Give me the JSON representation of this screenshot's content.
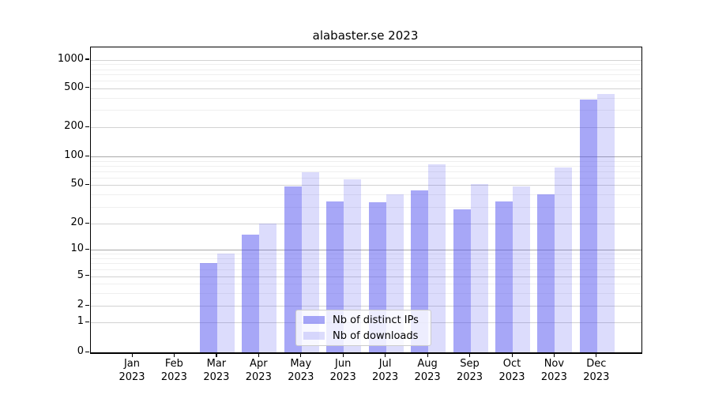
{
  "title": "alabaster.se 2023",
  "chart_data": {
    "type": "bar",
    "title": "alabaster.se 2023",
    "x_categories": [
      "Jan",
      "Feb",
      "Mar",
      "Apr",
      "May",
      "Jun",
      "Jul",
      "Aug",
      "Sep",
      "Oct",
      "Nov",
      "Dec"
    ],
    "x_year": "2023",
    "series": [
      {
        "name": "Nb of distinct IPs",
        "color": "rgba(80,80,240,0.5)",
        "values": [
          0,
          0,
          7,
          15,
          48,
          34,
          33,
          44,
          28,
          34,
          40,
          385
        ]
      },
      {
        "name": "Nb of downloads",
        "color": "rgba(80,80,240,0.2)",
        "values": [
          0,
          0,
          9,
          20,
          68,
          58,
          40,
          83,
          51,
          48,
          77,
          440
        ]
      }
    ],
    "y_axis": {
      "scale": "symlog",
      "ticks": [
        {
          "value": 0,
          "frac": 0.0
        },
        {
          "value": 1,
          "frac": 0.0974
        },
        {
          "value": 2,
          "frac": 0.1525
        },
        {
          "value": 5,
          "frac": 0.2499
        },
        {
          "value": 10,
          "frac": 0.3367
        },
        {
          "value": 20,
          "frac": 0.422
        },
        {
          "value": 50,
          "frac": 0.5486
        },
        {
          "value": 100,
          "frac": 0.6421
        },
        {
          "value": 200,
          "frac": 0.7382
        },
        {
          "value": 500,
          "frac": 0.8657
        },
        {
          "value": 1000,
          "frac": 0.9587
        }
      ],
      "minor_values": [
        3,
        4,
        6,
        7,
        8,
        9,
        30,
        40,
        60,
        70,
        80,
        90,
        300,
        400,
        600,
        700,
        800,
        900
      ],
      "ylim": [
        0,
        1200
      ]
    },
    "grid": true,
    "legend_position": "lower center"
  },
  "colors": {
    "bar_dark": "rgba(80,80,240,0.5)",
    "bar_light": "rgba(80,80,240,0.2)",
    "grid_major": "#d2d2d2",
    "grid_decade": "#a9a9a9",
    "grid_minor": "#efefef",
    "spine": "#000000",
    "background": "#ffffff"
  }
}
